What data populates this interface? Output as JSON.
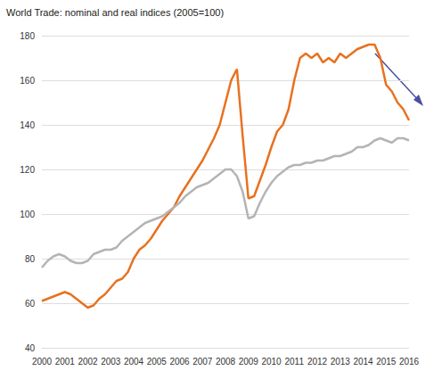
{
  "chart_data": {
    "type": "line",
    "title": "World Trade: nominal and real indices (2005=100)",
    "categories": [
      "2000",
      null,
      null,
      null,
      "2001",
      null,
      null,
      null,
      "2002",
      null,
      null,
      null,
      "2003",
      null,
      null,
      null,
      "2004",
      null,
      null,
      null,
      "2005",
      null,
      null,
      null,
      "2006",
      null,
      null,
      null,
      "2007",
      null,
      null,
      null,
      "2008",
      null,
      null,
      null,
      "2009",
      null,
      null,
      null,
      "2010",
      null,
      null,
      null,
      "2011",
      null,
      null,
      null,
      "2012",
      null,
      null,
      null,
      "2013",
      null,
      null,
      null,
      "2014",
      null,
      null,
      null,
      "2015",
      null,
      null,
      null,
      "2016"
    ],
    "series": [
      {
        "color": "#E8711F",
        "values": [
          61,
          62,
          63,
          64,
          65,
          64,
          62,
          60,
          58,
          59,
          62,
          64,
          67,
          70,
          71,
          74,
          80,
          84,
          86,
          89,
          93,
          97,
          100,
          103,
          108,
          112,
          116,
          120,
          124,
          129,
          134,
          140,
          150,
          160,
          165,
          135,
          107,
          108,
          115,
          122,
          130,
          137,
          140,
          147,
          160,
          170,
          172,
          170,
          172,
          168,
          170,
          168,
          172,
          170,
          172,
          174,
          175,
          176,
          176,
          170,
          158,
          155,
          150,
          147,
          142
        ]
      },
      {
        "color": "#B4B4B4",
        "values": [
          76,
          79,
          81,
          82,
          81,
          79,
          78,
          78,
          79,
          82,
          83,
          84,
          84,
          85,
          88,
          90,
          92,
          94,
          96,
          97,
          98,
          99,
          101,
          103,
          105,
          108,
          110,
          112,
          113,
          114,
          116,
          118,
          120,
          120,
          117,
          110,
          98,
          99,
          105,
          110,
          114,
          117,
          119,
          121,
          122,
          122,
          123,
          123,
          124,
          124,
          125,
          126,
          126,
          127,
          128,
          130,
          130,
          131,
          133,
          134,
          133,
          132,
          134,
          134,
          133
        ]
      }
    ],
    "ylim": [
      40,
      180
    ],
    "yticks": [
      40,
      60,
      80,
      100,
      120,
      140,
      160,
      180
    ],
    "grid": true
  }
}
